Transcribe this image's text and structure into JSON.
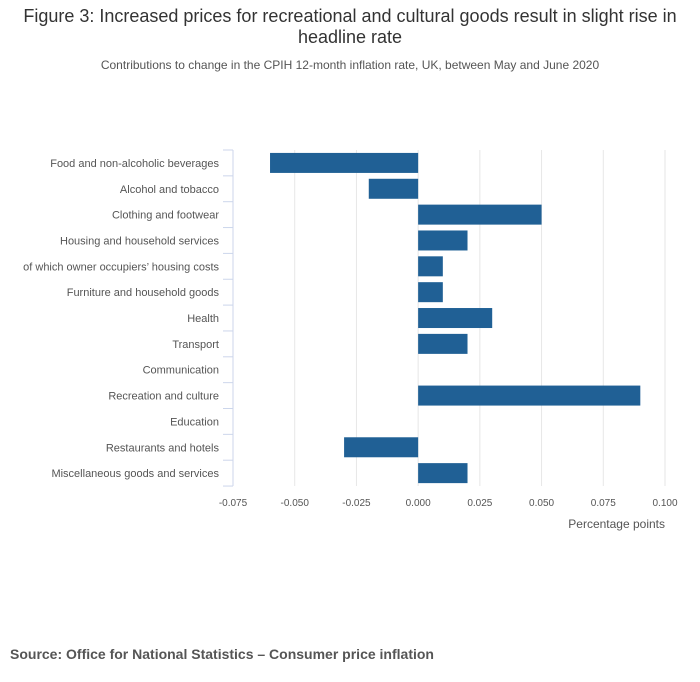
{
  "chart_data": {
    "type": "bar",
    "orientation": "horizontal",
    "title": "Figure 3: Increased prices for recreational and cultural goods result in slight rise in headline rate",
    "subtitle": "Contributions to change in the CPIH 12-month inflation rate, UK, between May and June 2020",
    "categories": [
      "Food and non-alcoholic beverages",
      "Alcohol and tobacco",
      "Clothing and footwear",
      "Housing and household services",
      "of which owner occupiers’ housing costs",
      "Furniture and household goods",
      "Health",
      "Transport",
      "Communication",
      "Recreation and culture",
      "Education",
      "Restaurants and hotels",
      "Miscellaneous goods and services"
    ],
    "values": [
      -0.06,
      -0.02,
      0.05,
      0.02,
      0.01,
      0.01,
      0.03,
      0.02,
      0.0,
      0.09,
      0.0,
      -0.03,
      0.02
    ],
    "xlim": [
      -0.075,
      0.1
    ],
    "xticks": [
      "-0.075",
      "-0.050",
      "-0.025",
      "0.000",
      "0.025",
      "0.050",
      "0.075",
      "0.100"
    ],
    "xtick_values": [
      -0.075,
      -0.05,
      -0.025,
      0.0,
      0.025,
      0.05,
      0.075,
      0.1
    ],
    "xlabel": "Percentage points",
    "ylabel": "",
    "grid": true,
    "bar_color": "#206095",
    "source": "Source: Office for National Statistics – Consumer price inflation"
  }
}
